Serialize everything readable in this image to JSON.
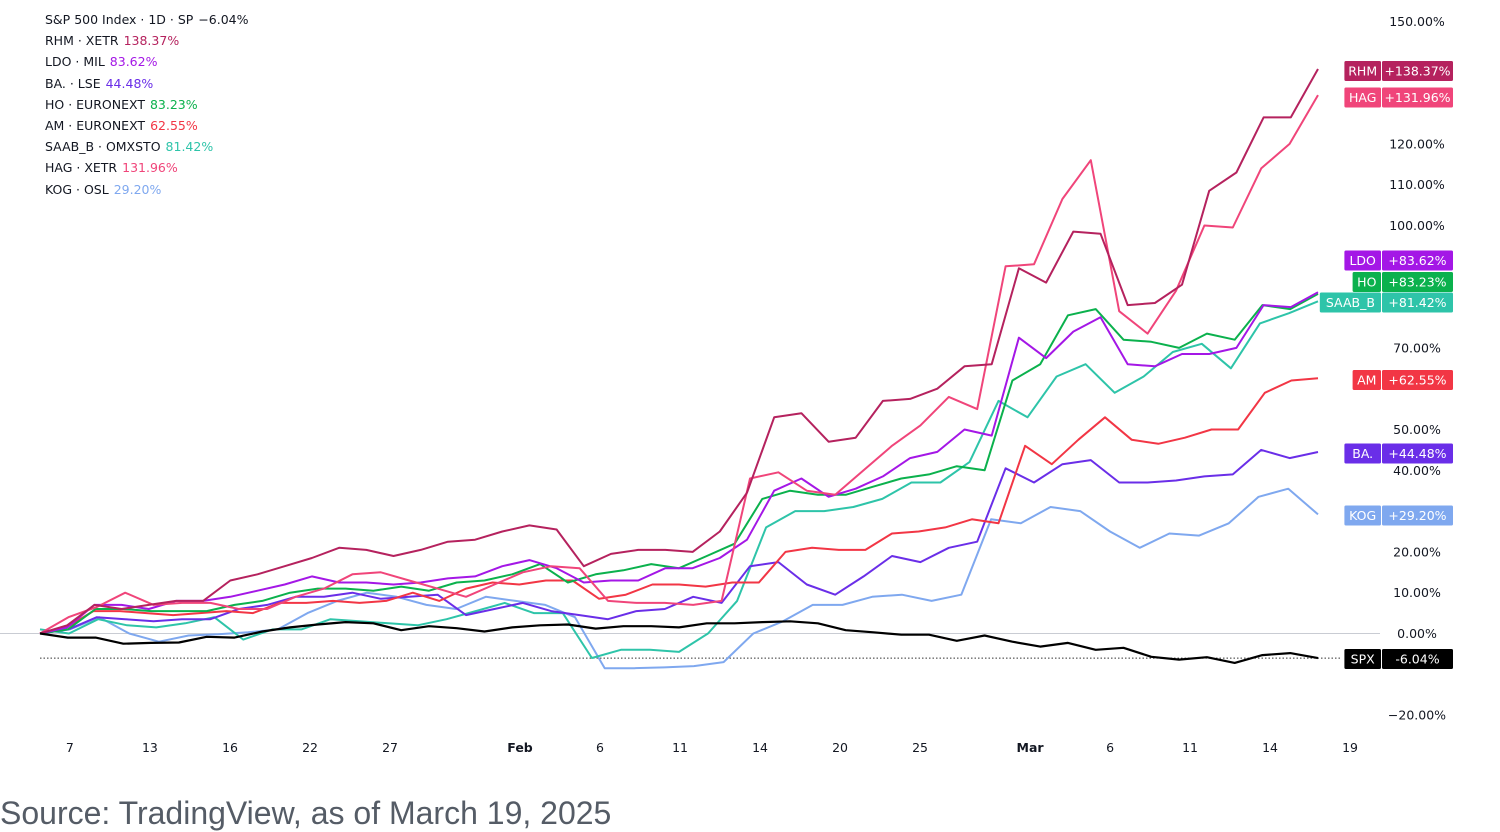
{
  "legend": {
    "items": [
      {
        "label": "S&P 500 Index · 1D · SP",
        "value": "−6.04%",
        "color": "#131722"
      },
      {
        "label": "RHM · XETR",
        "value": "138.37%",
        "color": "#b5225e"
      },
      {
        "label": "LDO · MIL",
        "value": "83.62%",
        "color": "#a417e6"
      },
      {
        "label": "BA. · LSE",
        "value": "44.48%",
        "color": "#6a2ee8"
      },
      {
        "label": "HO · EURONEXT",
        "value": "83.23%",
        "color": "#0bb14d"
      },
      {
        "label": "AM · EURONEXT",
        "value": "62.55%",
        "color": "#f23645"
      },
      {
        "label": "SAAB_B · OMXSTO",
        "value": "81.42%",
        "color": "#2ec4a9"
      },
      {
        "label": "HAG · XETR",
        "value": "131.96%",
        "color": "#f0457a"
      },
      {
        "label": "KOG · OSL",
        "value": "29.20%",
        "color": "#7fa8ef"
      }
    ]
  },
  "source": "Source: TradingView, as of March 19, 2025",
  "chart_data": {
    "type": "line",
    "x_tick_labels": [
      "7",
      "13",
      "16",
      "22",
      "27",
      "Feb",
      "6",
      "11",
      "14",
      "20",
      "25",
      "Mar",
      "6",
      "11",
      "14",
      "19"
    ],
    "y_tick_labels": [
      "150.00%",
      "120.00%",
      "110.00%",
      "100.00%",
      "70.00%",
      "50.00%",
      "40.00%",
      "20.00%",
      "10.00%",
      "0.00%",
      "−20.00%"
    ],
    "y_tick_values": [
      150,
      120,
      110,
      100,
      70,
      50,
      40,
      20,
      10,
      0,
      -20
    ],
    "ylim": [
      -25,
      155
    ],
    "num_points": 33,
    "series": [
      {
        "ticker": "SPX",
        "tag_value": "-6.04%",
        "color": "#000000",
        "values": [
          0,
          -1,
          -1,
          -2.5,
          -2.3,
          -2.2,
          -0.8,
          -1,
          0.5,
          1.5,
          2.2,
          2.8,
          2.5,
          0.8,
          1.8,
          1.3,
          0.5,
          1.5,
          2,
          2.2,
          1.2,
          1.8,
          1.8,
          1.5,
          2.5,
          2.5,
          2.8,
          3,
          2.5,
          0.8,
          0.3,
          -0.3,
          -0.3,
          -1.8,
          -0.5,
          -2,
          -3.2,
          -2.3,
          -4,
          -3.5,
          -5.7,
          -6.4,
          -5.8,
          -7.2,
          -5.3,
          -4.8,
          -6.04
        ]
      },
      {
        "ticker": "KOG",
        "tag_value": "+29.20%",
        "color": "#7fa8ef",
        "values": [
          0,
          1,
          4,
          0,
          -2,
          -0.5,
          -0.2,
          0.3,
          1,
          5,
          8,
          10,
          9,
          7,
          6,
          9,
          8,
          7,
          4,
          -8.5,
          -8.5,
          -8.3,
          -8,
          -7,
          0,
          3,
          7,
          7,
          9,
          9.5,
          8,
          9.5,
          28,
          27,
          31,
          30,
          25,
          21,
          24.5,
          24,
          27,
          33.5,
          35.5,
          29.2
        ]
      },
      {
        "ticker": "SAAB_B",
        "tag_value": "+81.42%",
        "color": "#2ec4a9",
        "values": [
          1,
          0,
          3.5,
          2,
          1.5,
          2.5,
          4,
          -1.5,
          1,
          1,
          3.5,
          3,
          2.5,
          2,
          3.5,
          5.5,
          7.5,
          5,
          5,
          -6,
          -4,
          -4,
          -4.5,
          0,
          8,
          26,
          30,
          30,
          31,
          33,
          37,
          37,
          42,
          57,
          53,
          63,
          66,
          59,
          63,
          69,
          71,
          65,
          76,
          78.5,
          81.42
        ]
      },
      {
        "ticker": "BA.",
        "tag_value": "+44.48%",
        "color": "#6a2ee8",
        "values": [
          0,
          1,
          4,
          3.5,
          3,
          3.5,
          3.5,
          6,
          7,
          9,
          9,
          10,
          8.5,
          9,
          9.5,
          4.5,
          6,
          7.5,
          5.5,
          4.5,
          3.5,
          5.5,
          6,
          9,
          7.5,
          16.5,
          17.5,
          12,
          9.5,
          14,
          19,
          17.5,
          21,
          22.5,
          40.5,
          37,
          41.5,
          42.5,
          37,
          37,
          37.5,
          38.5,
          39,
          45,
          43,
          44.48
        ]
      },
      {
        "ticker": "AM",
        "tag_value": "+62.55%",
        "color": "#f23645",
        "values": [
          0,
          1.5,
          5.5,
          5.5,
          5,
          4.5,
          5,
          5.5,
          5,
          7.5,
          7.5,
          8,
          7.5,
          8,
          10,
          8,
          11,
          12.5,
          12,
          13,
          13,
          8.5,
          9.5,
          12,
          12,
          11.5,
          12.5,
          12.5,
          20,
          21,
          20.5,
          20.5,
          24.5,
          25,
          26,
          28,
          27,
          46,
          41.5,
          47.5,
          53,
          47.5,
          46.5,
          48,
          50,
          50,
          59,
          62,
          62.55
        ]
      },
      {
        "ticker": "HO",
        "tag_value": "+83.23%",
        "color": "#0bb14d",
        "values": [
          0,
          1,
          6,
          6,
          5.5,
          5.5,
          5.5,
          7,
          8,
          10,
          11,
          11,
          10.5,
          11.5,
          10.5,
          12.5,
          13,
          14.5,
          17,
          12.5,
          14.5,
          15.5,
          17,
          16,
          19,
          22,
          33,
          35,
          34,
          34,
          36,
          38,
          39,
          41,
          40,
          62,
          66,
          78,
          79.5,
          72,
          71.5,
          70,
          73.5,
          72,
          80.5,
          79.5,
          83.23
        ]
      },
      {
        "ticker": "LDO",
        "tag_value": "+83.62%",
        "color": "#a417e6",
        "values": [
          0,
          1.5,
          7,
          7,
          6,
          8,
          8,
          9,
          10.5,
          12,
          14,
          12.5,
          12.5,
          12,
          12.5,
          13.5,
          14,
          16.5,
          18,
          16,
          12.5,
          13,
          13,
          16,
          16,
          18.5,
          23,
          35,
          38,
          33.5,
          35.5,
          38.5,
          43,
          44.5,
          50,
          48.5,
          72.5,
          67.5,
          74,
          77.5,
          66,
          65.5,
          68.5,
          68.5,
          70,
          80.5,
          80,
          83.62
        ]
      },
      {
        "ticker": "HAG",
        "tag_value": "+131.96%",
        "color": "#f0457a",
        "values": [
          0,
          4,
          6.5,
          10,
          7,
          7.5,
          7.5,
          6,
          6,
          9,
          11,
          14.5,
          15,
          13,
          11,
          9,
          12,
          15,
          16.5,
          16,
          8,
          7.5,
          7.5,
          7,
          8,
          38,
          39.5,
          35,
          34,
          40,
          46,
          51,
          58,
          55,
          90,
          90.5,
          106.5,
          116,
          79,
          73.5,
          84,
          100,
          99.5,
          114,
          120,
          131.96
        ]
      },
      {
        "ticker": "RHM",
        "tag_value": "+138.37%",
        "color": "#b5225e",
        "values": [
          0,
          2,
          7,
          6,
          7,
          8,
          8,
          13,
          14.5,
          16.5,
          18.5,
          21,
          20.5,
          19,
          20.5,
          22.5,
          23,
          25,
          26.5,
          25.5,
          16.5,
          19.5,
          20.5,
          20.5,
          20,
          25,
          34.5,
          53,
          54,
          47,
          48,
          57,
          57.5,
          60,
          65.5,
          66,
          89.5,
          86,
          98.5,
          98,
          80.5,
          81,
          85.5,
          108.5,
          113,
          126.5,
          126.5,
          138.37
        ]
      }
    ]
  }
}
